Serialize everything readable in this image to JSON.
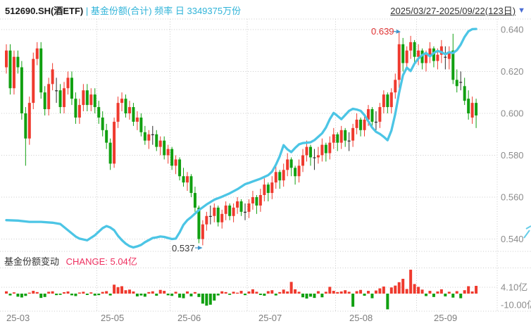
{
  "header": {
    "symbol": "512690.SH(酒ETF)",
    "separator": "|",
    "series_label": "基金份额(合计)",
    "freq_label": "频率",
    "freq_value": "日",
    "shares_value": "3349375万份",
    "date_range": "2025/03/27-2025/09/22(123日)"
  },
  "sub_header": {
    "title": "基金份额变动",
    "change_label": "CHANGE: 5.04亿"
  },
  "main_axis": {
    "labels": [
      "0.640",
      "0.620",
      "0.600",
      "0.580",
      "0.560",
      "0.540"
    ]
  },
  "bottom_axis": {
    "labels": [
      "4.10亿",
      "-10.00亿"
    ]
  },
  "colors": {
    "up": "#ef3a2e",
    "down": "#11a011",
    "neutral": "#2b2b2b",
    "share_line": "#4cc5e5",
    "grid": "#cbcbcb",
    "arrow_blue": "#3e96cc"
  },
  "chart_data": {
    "type": "candlestick+line+bar",
    "title": "512690.SH(酒ETF) 基金份额(合计) 日频",
    "date_range_start": "2025/03/27",
    "date_range_end": "2025/09/22",
    "trading_days": 123,
    "latest_shares_wan": 3349375,
    "latest_change_yi": 5.04,
    "price_ticks": [
      0.64,
      0.62,
      0.6,
      0.58,
      0.56,
      0.54
    ],
    "change_ticks_yi": [
      4.1,
      -10.0
    ],
    "months": {
      "labels": [
        "25-03",
        "25-05",
        "25-06",
        "25-07",
        "25-08",
        "25-09"
      ],
      "grid_days": [
        23.5,
        42.5,
        62.5,
        85.5,
        106.5
      ]
    },
    "annotations": {
      "high": {
        "label": "0.639",
        "day": 102,
        "value": 0.639
      },
      "low": {
        "label": "0.537",
        "day": 51,
        "value": 0.537
      }
    },
    "candles_ohlc_as_o_h_l_c": [
      [
        0.622,
        0.633,
        0.619,
        0.63
      ],
      [
        0.63,
        0.633,
        0.609,
        0.612
      ],
      [
        0.612,
        0.63,
        0.609,
        0.627
      ],
      [
        0.627,
        0.63,
        0.619,
        0.622
      ],
      [
        0.622,
        0.625,
        0.597,
        0.6
      ],
      [
        0.6,
        0.603,
        0.575,
        0.588
      ],
      [
        0.588,
        0.608,
        0.585,
        0.605
      ],
      [
        0.605,
        0.629,
        0.602,
        0.626
      ],
      [
        0.626,
        0.634,
        0.623,
        0.631
      ],
      [
        0.631,
        0.634,
        0.607,
        0.61
      ],
      [
        0.61,
        0.613,
        0.599,
        0.602
      ],
      [
        0.602,
        0.617,
        0.599,
        0.614
      ],
      [
        0.614,
        0.624,
        0.611,
        0.621
      ],
      [
        0.611,
        0.617,
        0.605,
        0.611
      ],
      [
        0.611,
        0.614,
        0.6,
        0.603
      ],
      [
        0.603,
        0.615,
        0.6,
        0.612
      ],
      [
        0.612,
        0.62,
        0.609,
        0.617
      ],
      [
        0.617,
        0.62,
        0.604,
        0.607
      ],
      [
        0.607,
        0.61,
        0.595,
        0.598
      ],
      [
        0.598,
        0.607,
        0.595,
        0.604
      ],
      [
        0.604,
        0.614,
        0.601,
        0.611
      ],
      [
        0.611,
        0.614,
        0.601,
        0.604
      ],
      [
        0.604,
        0.612,
        0.601,
        0.609
      ],
      [
        0.609,
        0.612,
        0.6,
        0.603
      ],
      [
        0.603,
        0.606,
        0.595,
        0.598
      ],
      [
        0.598,
        0.601,
        0.589,
        0.592
      ],
      [
        0.592,
        0.595,
        0.583,
        0.586
      ],
      [
        0.586,
        0.588,
        0.573,
        0.576
      ],
      [
        0.576,
        0.598,
        0.574,
        0.596
      ],
      [
        0.596,
        0.608,
        0.593,
        0.605
      ],
      [
        0.605,
        0.61,
        0.601,
        0.607
      ],
      [
        0.607,
        0.609,
        0.598,
        0.6
      ],
      [
        0.6,
        0.606,
        0.597,
        0.603
      ],
      [
        0.603,
        0.605,
        0.594,
        0.596
      ],
      [
        0.596,
        0.601,
        0.592,
        0.598
      ],
      [
        0.598,
        0.6,
        0.589,
        0.591
      ],
      [
        0.591,
        0.594,
        0.585,
        0.587
      ],
      [
        0.587,
        0.592,
        0.583,
        0.59
      ],
      [
        0.59,
        0.594,
        0.585,
        0.59
      ],
      [
        0.59,
        0.592,
        0.582,
        0.584
      ],
      [
        0.584,
        0.589,
        0.58,
        0.587
      ],
      [
        0.587,
        0.589,
        0.578,
        0.58
      ],
      [
        0.58,
        0.585,
        0.576,
        0.583
      ],
      [
        0.583,
        0.584,
        0.573,
        0.575
      ],
      [
        0.575,
        0.58,
        0.571,
        0.578
      ],
      [
        0.578,
        0.579,
        0.568,
        0.57
      ],
      [
        0.57,
        0.574,
        0.565,
        0.567
      ],
      [
        0.567,
        0.572,
        0.563,
        0.57
      ],
      [
        0.57,
        0.571,
        0.56,
        0.562
      ],
      [
        0.562,
        0.565,
        0.553,
        0.555
      ],
      [
        0.555,
        0.556,
        0.538,
        0.54
      ],
      [
        0.54,
        0.549,
        0.537,
        0.547
      ],
      [
        0.547,
        0.553,
        0.544,
        0.551
      ],
      [
        0.551,
        0.556,
        0.547,
        0.551
      ],
      [
        0.551,
        0.557,
        0.548,
        0.555
      ],
      [
        0.555,
        0.556,
        0.546,
        0.548
      ],
      [
        0.548,
        0.554,
        0.545,
        0.552
      ],
      [
        0.552,
        0.558,
        0.549,
        0.556
      ],
      [
        0.556,
        0.557,
        0.549,
        0.551
      ],
      [
        0.551,
        0.557,
        0.548,
        0.555
      ],
      [
        0.555,
        0.56,
        0.552,
        0.558
      ],
      [
        0.558,
        0.559,
        0.551,
        0.553
      ],
      [
        0.553,
        0.557,
        0.549,
        0.553
      ],
      [
        0.553,
        0.559,
        0.55,
        0.557
      ],
      [
        0.557,
        0.563,
        0.554,
        0.56
      ],
      [
        0.56,
        0.561,
        0.552,
        0.556
      ],
      [
        0.556,
        0.564,
        0.553,
        0.561
      ],
      [
        0.561,
        0.569,
        0.558,
        0.566
      ],
      [
        0.566,
        0.567,
        0.558,
        0.562
      ],
      [
        0.562,
        0.57,
        0.559,
        0.567
      ],
      [
        0.567,
        0.575,
        0.564,
        0.572
      ],
      [
        0.572,
        0.573,
        0.564,
        0.568
      ],
      [
        0.568,
        0.576,
        0.565,
        0.573
      ],
      [
        0.573,
        0.581,
        0.57,
        0.578
      ],
      [
        0.578,
        0.579,
        0.57,
        0.574
      ],
      [
        0.574,
        0.575,
        0.566,
        0.57
      ],
      [
        0.57,
        0.578,
        0.567,
        0.575
      ],
      [
        0.575,
        0.583,
        0.572,
        0.58
      ],
      [
        0.58,
        0.587,
        0.577,
        0.584
      ],
      [
        0.584,
        0.585,
        0.575,
        0.579
      ],
      [
        0.579,
        0.583,
        0.573,
        0.579
      ],
      [
        0.579,
        0.584,
        0.576,
        0.58
      ],
      [
        0.58,
        0.588,
        0.577,
        0.585
      ],
      [
        0.585,
        0.586,
        0.577,
        0.581
      ],
      [
        0.581,
        0.589,
        0.578,
        0.586
      ],
      [
        0.586,
        0.593,
        0.583,
        0.59
      ],
      [
        0.59,
        0.591,
        0.582,
        0.586
      ],
      [
        0.586,
        0.594,
        0.583,
        0.592
      ],
      [
        0.592,
        0.593,
        0.584,
        0.587
      ],
      [
        0.587,
        0.591,
        0.582,
        0.587
      ],
      [
        0.587,
        0.595,
        0.584,
        0.593
      ],
      [
        0.593,
        0.6,
        0.59,
        0.597
      ],
      [
        0.597,
        0.598,
        0.589,
        0.592
      ],
      [
        0.592,
        0.599,
        0.589,
        0.597
      ],
      [
        0.597,
        0.604,
        0.594,
        0.602
      ],
      [
        0.602,
        0.603,
        0.593,
        0.596
      ],
      [
        0.596,
        0.601,
        0.592,
        0.596
      ],
      [
        0.596,
        0.605,
        0.593,
        0.603
      ],
      [
        0.603,
        0.611,
        0.6,
        0.609
      ],
      [
        0.609,
        0.61,
        0.6,
        0.603
      ],
      [
        0.603,
        0.612,
        0.6,
        0.61
      ],
      [
        0.61,
        0.619,
        0.607,
        0.616
      ],
      [
        0.616,
        0.639,
        0.612,
        0.633
      ],
      [
        0.633,
        0.636,
        0.62,
        0.624
      ],
      [
        0.624,
        0.632,
        0.621,
        0.63
      ],
      [
        0.63,
        0.637,
        0.626,
        0.634
      ],
      [
        0.634,
        0.635,
        0.624,
        0.627
      ],
      [
        0.627,
        0.633,
        0.623,
        0.63
      ],
      [
        0.63,
        0.631,
        0.621,
        0.624
      ],
      [
        0.624,
        0.63,
        0.62,
        0.628
      ],
      [
        0.628,
        0.634,
        0.624,
        0.631
      ],
      [
        0.631,
        0.632,
        0.622,
        0.625
      ],
      [
        0.625,
        0.631,
        0.621,
        0.628
      ],
      [
        0.628,
        0.635,
        0.624,
        0.632
      ],
      [
        0.627,
        0.632,
        0.621,
        0.627
      ],
      [
        0.626,
        0.632,
        0.621,
        0.629
      ],
      [
        0.63,
        0.638,
        0.614,
        0.616
      ],
      [
        0.616,
        0.621,
        0.61,
        0.613
      ],
      [
        0.615,
        0.62,
        0.611,
        0.615
      ],
      [
        0.613,
        0.617,
        0.604,
        0.606
      ],
      [
        0.607,
        0.611,
        0.597,
        0.6
      ],
      [
        0.598,
        0.608,
        0.595,
        0.605
      ],
      [
        0.605,
        0.607,
        0.593,
        0.599
      ]
    ],
    "share_line_points_day_value": [
      [
        0,
        0.549
      ],
      [
        3,
        0.5488
      ],
      [
        6,
        0.5482
      ],
      [
        9,
        0.5482
      ],
      [
        12,
        0.5478
      ],
      [
        14,
        0.5472
      ],
      [
        16,
        0.5442
      ],
      [
        18,
        0.5412
      ],
      [
        19,
        0.5402
      ],
      [
        21,
        0.5394
      ],
      [
        23,
        0.5418
      ],
      [
        25,
        0.5452
      ],
      [
        26,
        0.5462
      ],
      [
        27,
        0.5455
      ],
      [
        28,
        0.5442
      ],
      [
        29,
        0.5415
      ],
      [
        30,
        0.5395
      ],
      [
        31,
        0.5378
      ],
      [
        32,
        0.5366
      ],
      [
        33,
        0.536
      ],
      [
        34,
        0.5365
      ],
      [
        35,
        0.5372
      ],
      [
        36,
        0.5385
      ],
      [
        37,
        0.5395
      ],
      [
        38,
        0.5405
      ],
      [
        39,
        0.5408
      ],
      [
        40,
        0.5412
      ],
      [
        41,
        0.541
      ],
      [
        42,
        0.5405
      ],
      [
        43,
        0.54
      ],
      [
        44,
        0.5402
      ],
      [
        45,
        0.5432
      ],
      [
        46,
        0.5468
      ],
      [
        47,
        0.549
      ],
      [
        48,
        0.5505
      ],
      [
        50,
        0.5538
      ],
      [
        52,
        0.5565
      ],
      [
        54,
        0.5588
      ],
      [
        56,
        0.5602
      ],
      [
        58,
        0.5618
      ],
      [
        60,
        0.5638
      ],
      [
        62,
        0.5662
      ],
      [
        63,
        0.5668
      ],
      [
        64,
        0.5675
      ],
      [
        66,
        0.5688
      ],
      [
        68,
        0.5705
      ],
      [
        69,
        0.5722
      ],
      [
        70,
        0.5755
      ],
      [
        71,
        0.5795
      ],
      [
        72,
        0.5848
      ],
      [
        73,
        0.5828
      ],
      [
        74,
        0.5815
      ],
      [
        75,
        0.5835
      ],
      [
        76,
        0.5852
      ],
      [
        77,
        0.5858
      ],
      [
        78,
        0.586
      ],
      [
        79,
        0.5862
      ],
      [
        80,
        0.5872
      ],
      [
        81,
        0.5888
      ],
      [
        82,
        0.5905
      ],
      [
        83,
        0.5932
      ],
      [
        84,
        0.5972
      ],
      [
        85,
        0.6002
      ],
      [
        86,
        0.5988
      ],
      [
        87,
        0.5972
      ],
      [
        88,
        0.5992
      ],
      [
        89,
        0.6012
      ],
      [
        90,
        0.6022
      ],
      [
        91,
        0.6018
      ],
      [
        92,
        0.6012
      ],
      [
        93,
        0.5992
      ],
      [
        94,
        0.5962
      ],
      [
        95,
        0.5932
      ],
      [
        96,
        0.5912
      ],
      [
        97,
        0.5902
      ],
      [
        98,
        0.5888
      ],
      [
        99,
        0.5872
      ],
      [
        100,
        0.5918
      ],
      [
        101,
        0.5998
      ],
      [
        102,
        0.6098
      ],
      [
        103,
        0.6182
      ],
      [
        104,
        0.6218
      ],
      [
        105,
        0.6202
      ],
      [
        106,
        0.6238
      ],
      [
        107,
        0.6262
      ],
      [
        108,
        0.6278
      ],
      [
        109,
        0.6288
      ],
      [
        110,
        0.6272
      ],
      [
        111,
        0.6288
      ],
      [
        112,
        0.6298
      ],
      [
        113,
        0.6292
      ],
      [
        114,
        0.6282
      ],
      [
        115,
        0.6292
      ],
      [
        116,
        0.6288
      ],
      [
        117,
        0.6302
      ],
      [
        118,
        0.6328
      ],
      [
        119,
        0.6365
      ],
      [
        120,
        0.6392
      ],
      [
        121,
        0.6402
      ],
      [
        122,
        0.6403
      ]
    ],
    "changes_yi": [
      1.5,
      -1.2,
      0.8,
      -2.0,
      -2.5,
      -1.5,
      0.6,
      1.8,
      1.0,
      -2.8,
      -2.2,
      1.2,
      1.5,
      -1.0,
      -0.8,
      0.9,
      1.4,
      -1.1,
      -1.6,
      0.7,
      1.2,
      -0.9,
      0.8,
      -1.3,
      -1.0,
      1.1,
      1.6,
      -1.2,
      5.8,
      4.2,
      4.8,
      2.2,
      2.6,
      1.4,
      -1.8,
      -1.2,
      -2.0,
      1.0,
      1.5,
      -1.4,
      2.4,
      1.8,
      -1.1,
      -1.5,
      1.2,
      -2.6,
      -3.0,
      1.4,
      -1.8,
      1.0,
      -2.2,
      -6.5,
      -7.8,
      -7.2,
      -4.5,
      -1.2,
      1.5,
      1.0,
      -0.8,
      1.2,
      0.6,
      1.8,
      -1.0,
      1.4,
      2.8,
      1.2,
      -0.9,
      -1.4,
      1.6,
      2.2,
      -1.2,
      1.0,
      2.6,
      1.4,
      7.6,
      2.8,
      1.2,
      -2.4,
      -3.2,
      -2.0,
      -2.8,
      1.6,
      -2.4,
      1.2,
      4.4,
      1.8,
      1.0,
      1.4,
      2.2,
      1.2,
      -8.5,
      1.6,
      2.4,
      -1.4,
      1.8,
      -3.0,
      2.0,
      3.4,
      4.6,
      -10.2,
      4.0,
      5.2,
      7.4,
      9.6,
      3.0,
      15.5,
      6.2,
      4.4,
      2.6,
      -1.6,
      1.8,
      -2.2,
      1.4,
      2.8,
      -1.8,
      1.2,
      -2.6,
      1.6,
      -3.0,
      2.2,
      4.8,
      1.4,
      5.04
    ]
  }
}
